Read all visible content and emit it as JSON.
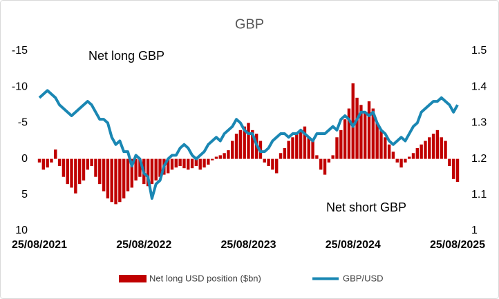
{
  "chart_data": {
    "type": "bar-line",
    "title": "GBP",
    "annotations": [
      "Net long GBP",
      "Net short GBP"
    ],
    "categories": [
      "25/08/2021",
      null,
      null,
      null,
      null,
      null,
      null,
      null,
      null,
      null,
      null,
      null,
      null,
      null,
      null,
      null,
      null,
      null,
      null,
      null,
      null,
      null,
      null,
      null,
      null,
      null,
      "25/08/2022",
      null,
      null,
      null,
      null,
      null,
      null,
      null,
      null,
      null,
      null,
      null,
      null,
      null,
      null,
      null,
      null,
      null,
      null,
      null,
      null,
      null,
      null,
      null,
      null,
      null,
      "25/08/2023",
      null,
      null,
      null,
      null,
      null,
      null,
      null,
      null,
      null,
      null,
      null,
      null,
      null,
      null,
      null,
      null,
      null,
      null,
      null,
      null,
      null,
      null,
      null,
      null,
      null,
      "25/08/2024",
      null,
      null,
      null,
      null,
      null,
      null,
      null,
      null,
      null,
      null,
      null,
      null,
      null,
      null,
      null,
      null,
      null,
      null,
      null,
      null,
      null,
      null,
      null,
      null,
      null,
      "25/08/2025"
    ],
    "series": [
      {
        "name": "Net long USD position ($bn)",
        "type": "bar",
        "axis": "y",
        "color": "#c00000",
        "values": [
          0.5,
          1.5,
          1.2,
          0.5,
          -1.3,
          1.0,
          2.5,
          3.5,
          4.0,
          4.8,
          3.5,
          3.0,
          1.5,
          1.0,
          2.5,
          3.5,
          4.5,
          5.5,
          6.0,
          6.3,
          6.0,
          5.5,
          4.5,
          4.0,
          3.0,
          2.5,
          3.5,
          3.8,
          3.5,
          3.0,
          2.5,
          2.2,
          2.0,
          1.5,
          1.2,
          1.0,
          1.3,
          1.5,
          1.3,
          1.0,
          1.5,
          1.2,
          0.8,
          0.2,
          -0.3,
          -0.5,
          -0.8,
          -1.2,
          -2.5,
          -3.5,
          -4.0,
          -4.5,
          -5.0,
          -4.0,
          -3.5,
          -2.5,
          0.5,
          1.0,
          1.5,
          2.0,
          -0.8,
          -1.5,
          -2.5,
          -3.0,
          -3.5,
          -4.0,
          -4.5,
          -3.0,
          -2.5,
          -0.5,
          1.5,
          2.2,
          0.5,
          -0.5,
          -3.0,
          -4.0,
          -5.5,
          -7.0,
          -10.5,
          -8.5,
          -7.5,
          -6.5,
          -8.0,
          -7.0,
          -5.0,
          -4.0,
          -3.0,
          -2.0,
          -1.0,
          0.5,
          1.2,
          0.5,
          -0.3,
          -0.8,
          -1.5,
          -2.0,
          -2.5,
          -3.0,
          -3.5,
          -4.0,
          -3.0,
          -2.5,
          1.0,
          2.8,
          3.2
        ]
      },
      {
        "name": "GBP/USD",
        "type": "line",
        "axis": "y2",
        "color": "#1a87b3",
        "values": [
          1.37,
          1.38,
          1.39,
          1.38,
          1.37,
          1.35,
          1.34,
          1.33,
          1.32,
          1.33,
          1.34,
          1.35,
          1.36,
          1.35,
          1.33,
          1.31,
          1.31,
          1.3,
          1.26,
          1.24,
          1.25,
          1.22,
          1.22,
          1.18,
          1.21,
          1.2,
          1.16,
          1.15,
          1.09,
          1.13,
          1.14,
          1.18,
          1.2,
          1.21,
          1.21,
          1.23,
          1.24,
          1.23,
          1.21,
          1.2,
          1.21,
          1.22,
          1.24,
          1.25,
          1.26,
          1.25,
          1.27,
          1.28,
          1.29,
          1.31,
          1.3,
          1.28,
          1.27,
          1.27,
          1.24,
          1.22,
          1.22,
          1.23,
          1.25,
          1.26,
          1.27,
          1.27,
          1.26,
          1.27,
          1.27,
          1.28,
          1.27,
          1.26,
          1.25,
          1.27,
          1.27,
          1.27,
          1.28,
          1.29,
          1.28,
          1.31,
          1.32,
          1.31,
          1.29,
          1.31,
          1.33,
          1.33,
          1.32,
          1.33,
          1.3,
          1.28,
          1.27,
          1.25,
          1.24,
          1.25,
          1.26,
          1.25,
          1.27,
          1.29,
          1.3,
          1.33,
          1.34,
          1.35,
          1.36,
          1.36,
          1.37,
          1.36,
          1.35,
          1.33,
          1.35
        ]
      }
    ],
    "ylim": [
      -15,
      10
    ],
    "y_reversed": true,
    "yticks": [
      -15,
      -10,
      -5,
      0,
      5,
      10
    ],
    "y2lim": [
      1,
      1.5
    ],
    "y2ticks": [
      1,
      1.1,
      1.2,
      1.3,
      1.4,
      1.5
    ],
    "grid": false,
    "legend": "bottom"
  }
}
